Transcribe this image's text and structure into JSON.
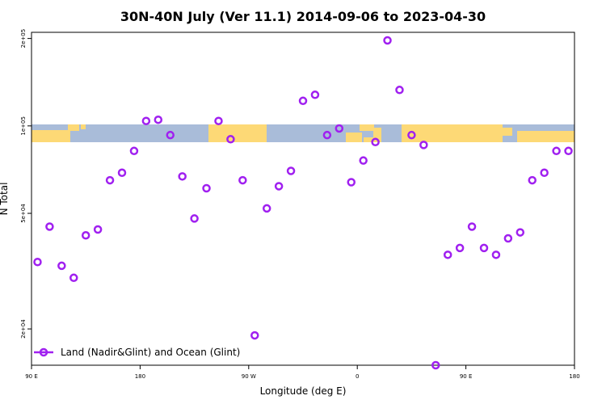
{
  "chart_data": {
    "type": "scatter",
    "title": "30N-40N July (Ver 11.1)   2014-09-06 to 2023-04-30",
    "xlabel": "Longitude (deg E)",
    "ylabel": "N Total",
    "x_scale": "linear",
    "y_scale": "log",
    "xlim": [
      90,
      540
    ],
    "ylim": [
      15000,
      210000
    ],
    "x_ticks": [
      {
        "value": 90,
        "label": "90 E"
      },
      {
        "value": 180,
        "label": "180"
      },
      {
        "value": 270,
        "label": "90 W"
      },
      {
        "value": 360,
        "label": "0"
      },
      {
        "value": 450,
        "label": "90 E"
      },
      {
        "value": 540,
        "label": "180"
      }
    ],
    "y_ticks": [
      {
        "value": 20000,
        "label": "2e+04"
      },
      {
        "value": 50000,
        "label": "5e+04"
      },
      {
        "value": 100000,
        "label": "1e+05"
      },
      {
        "value": 200000,
        "label": "2e+05"
      }
    ],
    "grid": false,
    "legend_position": "bottom-left",
    "background_map": "world-map-band-30N-40N",
    "series": [
      {
        "name": "Land (Nadir&Glint) and Ocean (Glint)",
        "color": "#a020f0",
        "marker": "open-circle",
        "x": [
          95,
          105,
          115,
          125,
          135,
          145,
          155,
          165,
          175,
          185,
          195,
          205,
          215,
          225,
          235,
          245,
          255,
          265,
          275,
          285,
          295,
          305,
          315,
          325,
          335,
          345,
          355,
          365,
          375,
          385,
          395,
          405,
          415,
          425,
          435,
          445,
          455,
          465,
          475,
          485,
          495,
          505,
          515,
          525,
          535
        ],
        "y": [
          34000,
          45000,
          33000,
          30000,
          42000,
          44000,
          65000,
          69000,
          82000,
          104000,
          105000,
          93000,
          67000,
          48000,
          61000,
          104000,
          90000,
          65000,
          19000,
          52000,
          62000,
          70000,
          122000,
          128000,
          93000,
          98000,
          64000,
          76000,
          88000,
          197000,
          133000,
          93000,
          86000,
          15000,
          36000,
          38000,
          45000,
          38000,
          36000,
          41000,
          43000,
          65000,
          69000,
          82000,
          82000
        ]
      }
    ]
  }
}
